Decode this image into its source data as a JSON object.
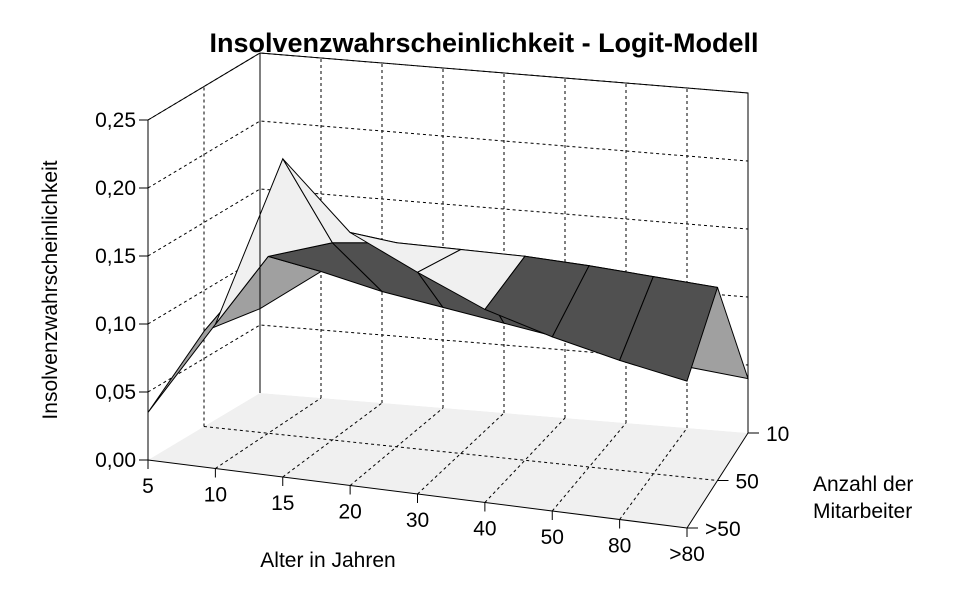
{
  "chart_data": {
    "type": "surface",
    "title": "Insolvenzwahrscheinlichkeit - Logit-Modell",
    "zlabel": "Insolvenzwahrscheinlichkeit",
    "xlabel": "Alter in Jahren",
    "ylabel_line1": "Anzahl der",
    "ylabel_line2": "Mitarbeiter",
    "z_ticks": [
      "0,00",
      "0,05",
      "0,10",
      "0,15",
      "0,20",
      "0,25"
    ],
    "zlim": [
      0,
      0.25
    ],
    "x_categories": [
      "5",
      "10",
      "15",
      "20",
      "30",
      "40",
      "50",
      "80",
      ">80"
    ],
    "y_categories": [
      "10",
      "50",
      ">50"
    ],
    "grid": true,
    "colors": {
      "low": "#a0a0a0",
      "mid": "#f0f0f0",
      "high": "#bcbcbc",
      "top": "#505050",
      "back_wall": "#ffffff",
      "floor": "#f0f0f0"
    },
    "series": [
      {
        "name": "10",
        "values": [
          0.035,
          0.106,
          0.234,
          0.186,
          0.163,
          0.142,
          0.128,
          0.117,
          0.108
        ]
      },
      {
        "name": "50",
        "values": [
          0.07,
          0.13,
          0.145,
          0.15,
          0.15,
          0.15,
          0.148,
          0.145,
          0.142
        ]
      },
      {
        "name": ">50",
        "values": [
          0.062,
          0.093,
          0.082,
          0.074,
          0.066,
          0.058,
          0.051,
          0.045,
          0.04
        ]
      }
    ]
  }
}
